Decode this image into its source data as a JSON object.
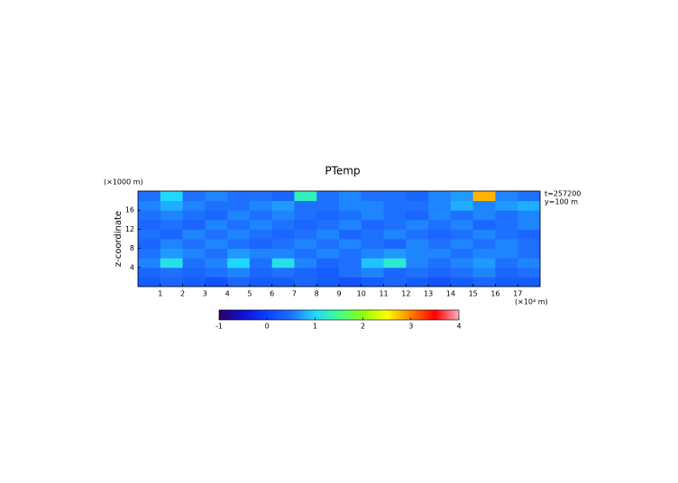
{
  "chart_data": {
    "type": "heatmap",
    "title": "PTemp",
    "ylabel": "z-coordinate",
    "y_unit": "(×1000 m)",
    "x_unit": "(×10⁴ m)",
    "annotations": [
      "t=257200",
      "y=100 m"
    ],
    "xlim": [
      0,
      18
    ],
    "ylim": [
      0,
      20
    ],
    "xticks": [
      1,
      2,
      3,
      4,
      5,
      6,
      7,
      8,
      9,
      10,
      11,
      12,
      13,
      14,
      15,
      16,
      17
    ],
    "yticks": [
      4,
      8,
      12,
      16
    ],
    "x": [
      0.5,
      1.5,
      2.5,
      3.5,
      4.5,
      5.5,
      6.5,
      7.5,
      8.5,
      9.5,
      10.5,
      11.5,
      12.5,
      13.5,
      14.5,
      15.5,
      16.5,
      17.5
    ],
    "y": [
      1,
      3,
      5,
      7,
      9,
      11,
      13,
      15,
      17,
      19
    ],
    "z": [
      [
        0.3,
        0.4,
        0.3,
        0.2,
        0.4,
        0.3,
        0.3,
        0.4,
        0.3,
        0.2,
        0.3,
        0.4,
        0.3,
        0.2,
        0.3,
        0.4,
        0.3,
        0.3
      ],
      [
        0.4,
        0.5,
        0.4,
        0.5,
        0.6,
        0.4,
        0.5,
        0.4,
        0.3,
        0.5,
        0.6,
        0.4,
        0.5,
        0.4,
        0.5,
        0.6,
        0.4,
        0.5
      ],
      [
        0.6,
        1.1,
        0.5,
        0.6,
        1.0,
        0.5,
        1.1,
        0.6,
        0.4,
        0.5,
        0.9,
        1.2,
        0.6,
        0.5,
        0.6,
        0.7,
        0.5,
        0.6
      ],
      [
        0.5,
        0.7,
        0.6,
        0.5,
        0.7,
        0.6,
        0.6,
        0.5,
        0.6,
        0.5,
        0.6,
        0.7,
        0.6,
        0.6,
        0.5,
        0.6,
        0.6,
        0.5
      ],
      [
        0.4,
        0.6,
        0.5,
        0.6,
        0.5,
        0.4,
        0.5,
        0.6,
        0.5,
        0.6,
        0.5,
        0.4,
        0.6,
        0.5,
        0.6,
        0.5,
        0.6,
        0.5
      ],
      [
        0.5,
        0.4,
        0.6,
        0.5,
        0.6,
        0.5,
        0.4,
        0.5,
        0.6,
        0.4,
        0.5,
        0.6,
        0.5,
        0.4,
        0.5,
        0.6,
        0.5,
        0.4
      ],
      [
        0.4,
        0.5,
        0.4,
        0.6,
        0.5,
        0.6,
        0.5,
        0.4,
        0.5,
        0.6,
        0.4,
        0.5,
        0.6,
        0.5,
        0.6,
        0.4,
        0.5,
        0.6
      ],
      [
        0.5,
        0.6,
        0.5,
        0.4,
        0.6,
        0.5,
        0.6,
        0.5,
        0.4,
        0.5,
        0.6,
        0.5,
        0.4,
        0.6,
        0.5,
        0.6,
        0.5,
        0.6
      ],
      [
        0.6,
        0.8,
        0.6,
        0.5,
        0.5,
        0.6,
        0.7,
        0.5,
        0.5,
        0.6,
        0.6,
        0.5,
        0.5,
        0.6,
        0.8,
        0.6,
        0.7,
        0.8
      ],
      [
        0.5,
        1.0,
        0.5,
        0.6,
        0.5,
        0.5,
        0.4,
        1.3,
        0.5,
        0.6,
        0.5,
        0.5,
        0.4,
        0.6,
        0.7,
        2.8,
        0.6,
        0.5
      ]
    ],
    "colorbar": {
      "lim": [
        -1,
        4
      ],
      "ticks": [
        -1,
        0,
        1,
        2,
        3,
        4
      ]
    },
    "colorscale": [
      [
        -1,
        "#2a0066"
      ],
      [
        -0.5,
        "#1010d0"
      ],
      [
        0,
        "#0a40ff"
      ],
      [
        0.5,
        "#1e70ff"
      ],
      [
        1,
        "#20d8ff"
      ],
      [
        1.5,
        "#40ff90"
      ],
      [
        2,
        "#90ff10"
      ],
      [
        2.5,
        "#ffff00"
      ],
      [
        3,
        "#ff8000"
      ],
      [
        3.5,
        "#ff0000"
      ],
      [
        4,
        "#ffb0c0"
      ]
    ]
  }
}
